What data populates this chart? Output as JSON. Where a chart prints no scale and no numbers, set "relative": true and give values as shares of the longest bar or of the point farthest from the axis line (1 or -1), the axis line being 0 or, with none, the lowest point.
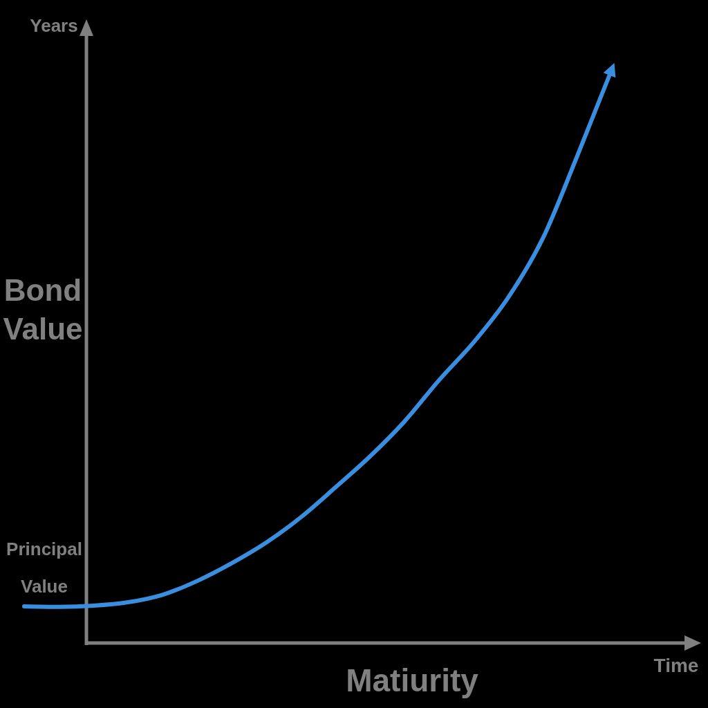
{
  "chart_data": {
    "type": "line",
    "relative": true,
    "ylabel": "Bond Value",
    "xlabel": "Matiurity",
    "annotations": [
      "Years",
      "Time",
      "Principal Value"
    ],
    "categories": [
      null,
      null,
      null,
      null,
      null,
      null,
      null,
      null,
      null,
      null,
      null,
      null,
      null,
      null,
      null,
      null,
      null,
      null
    ],
    "series": [
      {
        "color": "#3a8ee0",
        "values": [
          0.064,
          0.063,
          0.065,
          0.071,
          0.084,
          0.108,
          0.139,
          0.175,
          0.219,
          0.271,
          0.325,
          0.386,
          0.458,
          0.524,
          0.602,
          0.705,
          0.849,
          1.0
        ]
      }
    ]
  }
}
